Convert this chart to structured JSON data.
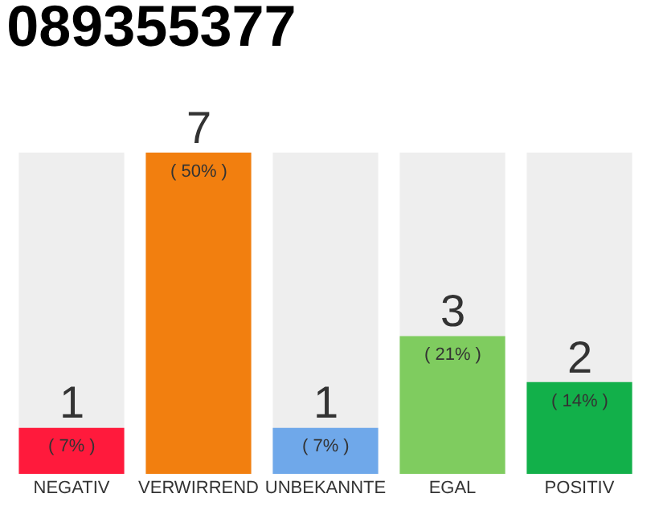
{
  "chart_data": {
    "type": "bar",
    "title": "089355377",
    "categories": [
      "NEGATIV",
      "VERWIRREND",
      "UNBEKANNTE",
      "EGAL",
      "POSITIV"
    ],
    "values": [
      1,
      7,
      1,
      3,
      2
    ],
    "colors": [
      "#ff1a3c",
      "#f27f0f",
      "#6fa8ea",
      "#7fcc5f",
      "#12b04a"
    ],
    "value_labels": [
      "1\n( 7% )",
      "7\n( 50% )",
      "1\n( 7% )",
      "3\n( 21% )",
      "2\n( 14% )"
    ],
    "grid": false,
    "legend": false
  }
}
